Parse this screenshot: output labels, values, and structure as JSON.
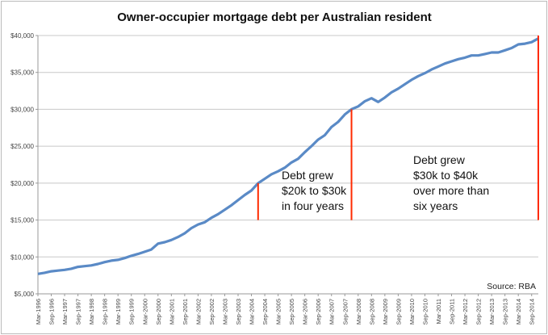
{
  "chart_data": {
    "type": "line",
    "title": "Owner-occupier mortgage debt per Australian resident",
    "xlabel": "",
    "ylabel": "",
    "ylim": [
      5000,
      40000
    ],
    "yticks": [
      "$5,000",
      "$10,000",
      "$15,000",
      "$20,000",
      "$25,000",
      "$30,000",
      "$35,000",
      "$40,000"
    ],
    "ytick_values": [
      5000,
      10000,
      15000,
      20000,
      25000,
      30000,
      35000,
      40000
    ],
    "grid": "horizontal",
    "series_color": "#5a8ac6",
    "annotation_color": "#ff2a00",
    "xtick_labels": [
      "Mar-1996",
      "Sep-1996",
      "Mar-1997",
      "Sep-1997",
      "Mar-1998",
      "Sep-1998",
      "Mar-1999",
      "Sep-1999",
      "Mar-2000",
      "Sep-2000",
      "Mar-2001",
      "Sep-2001",
      "Mar-2002",
      "Sep-2002",
      "Mar-2003",
      "Sep-2003",
      "Mar-2004",
      "Sep-2004",
      "Mar-2005",
      "Sep-2005",
      "Mar-2006",
      "Sep-2006",
      "Mar-2007",
      "Sep-2007",
      "Mar-2008",
      "Sep-2008",
      "Mar-2009",
      "Sep-2009",
      "Mar-2010",
      "Sep-2010",
      "Mar-2011",
      "Sep-2011",
      "Mar-2012",
      "Sep-2012",
      "Mar-2013",
      "Sep-2013",
      "Mar-2014",
      "Sep-2014"
    ],
    "x_start": "Mar-1996",
    "x_frequency": "quarterly",
    "values": [
      7700,
      7850,
      8050,
      8150,
      8250,
      8400,
      8650,
      8750,
      8850,
      9050,
      9300,
      9500,
      9600,
      9850,
      10150,
      10400,
      10700,
      11000,
      11800,
      12000,
      12300,
      12700,
      13200,
      13900,
      14400,
      14700,
      15300,
      15800,
      16400,
      17000,
      17700,
      18400,
      19000,
      20000,
      20600,
      21200,
      21600,
      22100,
      22800,
      23300,
      24200,
      25000,
      25900,
      26500,
      27600,
      28300,
      29300,
      30000,
      30400,
      31100,
      31500,
      31000,
      31600,
      32300,
      32800,
      33400,
      34000,
      34500,
      34900,
      35400,
      35800,
      36200,
      36500,
      36800,
      37000,
      37300,
      37300,
      37500,
      37700,
      37700,
      38000,
      38300,
      38800,
      38900,
      39100,
      39600
    ],
    "markers": [
      {
        "x": "Jun-2004",
        "from": 15000,
        "to": 20000
      },
      {
        "x": "Dec-2007",
        "from": 15000,
        "to": 30000
      },
      {
        "x": "Dec-2014",
        "from": 15000,
        "to": 40000
      }
    ],
    "annotations": [
      {
        "lines": [
          "Debt grew",
          "$20k to $30k",
          "in four years"
        ]
      },
      {
        "lines": [
          "Debt grew",
          "$30k to $40k",
          "over more than",
          "six years"
        ]
      }
    ],
    "source": "Source: RBA"
  }
}
